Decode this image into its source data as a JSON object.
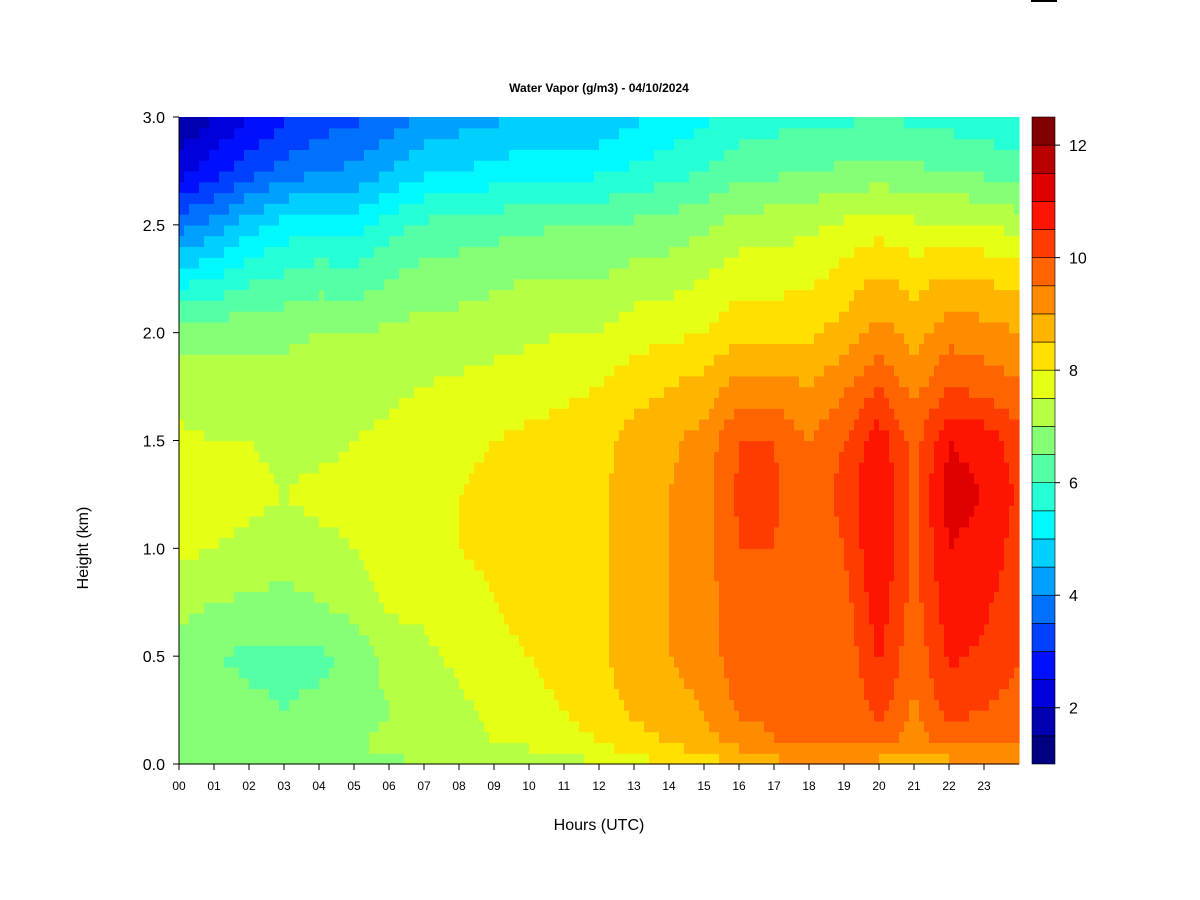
{
  "chart_data": {
    "type": "heatmap",
    "title": "Water Vapor (g/m3) - 04/10/2024",
    "xlabel": "Hours (UTC)",
    "ylabel": "Height (km)",
    "xlim": [
      0,
      24
    ],
    "ylim": [
      0,
      3.0
    ],
    "x_ticks": [
      "00",
      "01",
      "02",
      "03",
      "04",
      "05",
      "06",
      "07",
      "08",
      "09",
      "10",
      "11",
      "12",
      "13",
      "14",
      "15",
      "16",
      "17",
      "18",
      "19",
      "20",
      "21",
      "22",
      "23"
    ],
    "y_ticks": [
      "0.0",
      "0.5",
      "1.0",
      "1.5",
      "2.0",
      "2.5",
      "3.0"
    ],
    "colorbar": {
      "min": 1,
      "max": 12.5,
      "step": 0.5,
      "ticks": [
        "2",
        "4",
        "6",
        "8",
        "10",
        "12"
      ],
      "colors": [
        "#000080",
        "#0000b0",
        "#0000dd",
        "#0010ff",
        "#0040ff",
        "#0070ff",
        "#00a0ff",
        "#00d0ff",
        "#00f8ff",
        "#25ffd5",
        "#55ffa5",
        "#85ff75",
        "#b5ff45",
        "#e5ff15",
        "#ffe000",
        "#ffb400",
        "#ff8c00",
        "#ff6400",
        "#ff3c00",
        "#ff1400",
        "#e00000",
        "#b80000",
        "#800000"
      ]
    },
    "grid": false,
    "legend": "colorbar-right",
    "hours": [
      0,
      1,
      2,
      3,
      4,
      5,
      6,
      7,
      8,
      9,
      10,
      11,
      12,
      13,
      14,
      15,
      16,
      17,
      18,
      19,
      20,
      21,
      22,
      23,
      24
    ],
    "heights": [
      0.0,
      0.1,
      0.25,
      0.5,
      0.75,
      1.0,
      1.25,
      1.5,
      1.75,
      2.0,
      2.25,
      2.5,
      2.75,
      3.0
    ],
    "values": [
      [
        6.5,
        6.5,
        6.6,
        6.7,
        6.8,
        6.8,
        6.9,
        7.0,
        7.0,
        7.1,
        7.2,
        7.3,
        7.4,
        7.8,
        8.0,
        8.2,
        8.5,
        8.8,
        9.0,
        9.0,
        8.8,
        8.4,
        8.8,
        9.0,
        9.0
      ],
      [
        7.0,
        7.0,
        6.9,
        6.9,
        7.0,
        7.0,
        7.1,
        7.2,
        7.3,
        7.5,
        7.6,
        7.8,
        8.0,
        8.3,
        8.5,
        8.8,
        9.2,
        9.5,
        9.5,
        9.6,
        9.6,
        9.3,
        9.6,
        9.6,
        9.6
      ],
      [
        7.0,
        6.8,
        6.6,
        6.5,
        6.6,
        6.7,
        7.0,
        7.2,
        7.4,
        7.6,
        7.8,
        8.0,
        8.2,
        8.6,
        8.8,
        9.0,
        9.6,
        9.6,
        9.5,
        9.5,
        10.2,
        9.4,
        10.2,
        10.0,
        9.8
      ],
      [
        6.8,
        6.5,
        6.4,
        6.4,
        6.4,
        6.6,
        7.2,
        7.4,
        7.6,
        7.8,
        8.0,
        8.2,
        8.4,
        8.8,
        9.0,
        9.2,
        9.8,
        9.8,
        9.5,
        9.6,
        10.6,
        9.6,
        10.6,
        10.4,
        10.0
      ],
      [
        7.2,
        7.0,
        6.9,
        6.8,
        7.0,
        7.2,
        7.6,
        7.6,
        7.8,
        8.0,
        8.2,
        8.3,
        8.4,
        8.8,
        9.0,
        9.2,
        9.9,
        9.9,
        9.5,
        9.8,
        10.8,
        9.8,
        10.8,
        10.6,
        10.2
      ],
      [
        7.6,
        7.5,
        7.4,
        7.3,
        7.4,
        7.5,
        7.8,
        7.8,
        8.0,
        8.1,
        8.3,
        8.4,
        8.4,
        8.8,
        9.0,
        9.3,
        10.0,
        10.0,
        9.6,
        10.0,
        11.0,
        9.9,
        11.0,
        10.8,
        10.3
      ],
      [
        7.8,
        7.7,
        7.6,
        7.5,
        7.6,
        7.6,
        7.8,
        7.9,
        8.0,
        8.1,
        8.2,
        8.3,
        8.4,
        8.8,
        9.0,
        9.3,
        10.1,
        10.1,
        9.6,
        10.2,
        11.0,
        9.9,
        11.2,
        11.0,
        10.4
      ],
      [
        7.6,
        7.5,
        7.5,
        7.4,
        7.4,
        7.5,
        7.6,
        7.8,
        7.9,
        8.0,
        8.1,
        8.2,
        8.3,
        8.7,
        8.9,
        9.2,
        10.0,
        10.0,
        9.5,
        10.0,
        10.8,
        9.8,
        11.0,
        10.8,
        10.2
      ],
      [
        7.3,
        7.2,
        7.2,
        7.2,
        7.2,
        7.3,
        7.4,
        7.5,
        7.6,
        7.7,
        7.8,
        7.9,
        8.0,
        8.3,
        8.5,
        8.7,
        9.2,
        9.2,
        9.0,
        9.4,
        10.0,
        9.3,
        10.0,
        9.8,
        9.6
      ],
      [
        6.8,
        6.8,
        6.9,
        6.9,
        7.0,
        7.0,
        7.1,
        7.2,
        7.2,
        7.3,
        7.4,
        7.5,
        7.5,
        7.8,
        7.9,
        8.0,
        8.4,
        8.4,
        8.4,
        8.7,
        9.2,
        8.8,
        9.3,
        9.2,
        9.0
      ],
      [
        5.3,
        5.5,
        5.9,
        6.1,
        6.3,
        6.2,
        6.5,
        6.7,
        6.8,
        6.9,
        7.0,
        7.0,
        7.0,
        7.2,
        7.3,
        7.5,
        7.8,
        7.8,
        7.9,
        8.2,
        8.6,
        8.3,
        8.6,
        8.5,
        8.3
      ],
      [
        3.8,
        4.2,
        4.8,
        5.2,
        5.4,
        5.3,
        5.8,
        6.1,
        6.2,
        6.3,
        6.4,
        6.5,
        6.5,
        6.6,
        6.7,
        6.9,
        7.2,
        7.3,
        7.4,
        7.6,
        7.8,
        7.6,
        7.6,
        7.5,
        7.3
      ],
      [
        2.3,
        2.8,
        3.3,
        3.7,
        4.0,
        4.1,
        4.5,
        4.9,
        5.0,
        5.2,
        5.3,
        5.3,
        5.4,
        5.6,
        5.8,
        6.0,
        6.3,
        6.4,
        6.5,
        6.6,
        6.7,
        6.6,
        6.5,
        6.4,
        6.2
      ],
      [
        1.5,
        2.0,
        2.5,
        2.9,
        3.2,
        3.4,
        3.7,
        4.1,
        4.3,
        4.4,
        4.5,
        4.5,
        4.6,
        4.9,
        5.1,
        5.4,
        5.7,
        5.8,
        5.9,
        5.9,
        6.0,
        5.9,
        5.8,
        5.7,
        5.6
      ]
    ]
  }
}
